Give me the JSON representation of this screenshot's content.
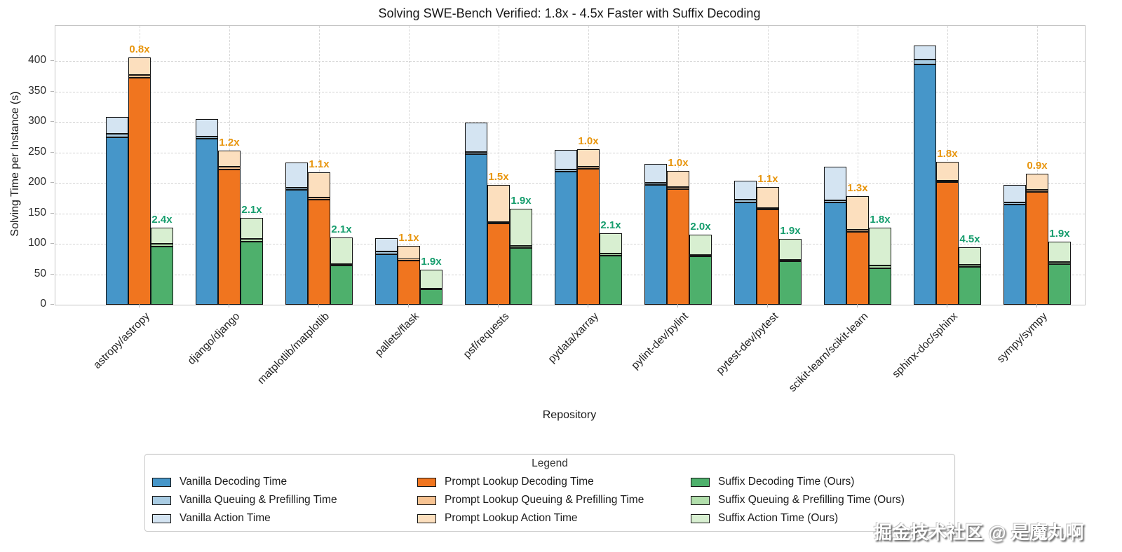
{
  "chart_data": {
    "type": "bar",
    "variant": "grouped-stacked",
    "title": "Solving SWE-Bench Verified: 1.8x - 4.5x Faster with Suffix Decoding",
    "xlabel": "Repository",
    "ylabel": "Solving Time per Instance (s)",
    "ylim": [
      0,
      457
    ],
    "yticks": [
      0,
      50,
      100,
      150,
      200,
      250,
      300,
      350,
      400
    ],
    "grid": "dashed horizontal at yticks, dashed vertical at category centers",
    "legend_position": "bottom",
    "stack_segments": [
      "Decoding Time",
      "Queuing & Prefilling Time",
      "Action Time"
    ],
    "methods": [
      {
        "key": "vanilla",
        "name": "Vanilla",
        "colors": {
          "decoding": "#4696c9",
          "queuing": "#a9cce3",
          "action": "#d4e4f2"
        }
      },
      {
        "key": "prompt_lookup",
        "name": "Prompt Lookup",
        "colors": {
          "decoding": "#f0751f",
          "queuing": "#f7c392",
          "action": "#fcdfbe"
        },
        "speedup_color": "#e8960f"
      },
      {
        "key": "suffix",
        "name": "Suffix (Ours)",
        "colors": {
          "decoding": "#4eb06c",
          "queuing": "#b2dfac",
          "action": "#d8efd1"
        },
        "speedup_color": "#169d6d"
      }
    ],
    "categories": [
      "astropy/astropy",
      "django/django",
      "matplotlib/matplotlib",
      "pallets/flask",
      "psf/requests",
      "pydata/xarray",
      "pylint-dev/pylint",
      "pytest-dev/pytest",
      "scikit-learn/scikit-learn",
      "sphinx-doc/sphinx",
      "sympy/sympy"
    ],
    "groups": [
      {
        "repo": "astropy/astropy",
        "vanilla": {
          "decoding": 275,
          "queuing": 5,
          "action": 28
        },
        "prompt_lookup": {
          "decoding": 372,
          "queuing": 5,
          "action": 29,
          "speedup": "0.8x"
        },
        "suffix": {
          "decoding": 95,
          "queuing": 5,
          "action": 27,
          "speedup": "2.4x"
        }
      },
      {
        "repo": "django/django",
        "vanilla": {
          "decoding": 272,
          "queuing": 4,
          "action": 29
        },
        "prompt_lookup": {
          "decoding": 222,
          "queuing": 4,
          "action": 27,
          "speedup": "1.2x"
        },
        "suffix": {
          "decoding": 104,
          "queuing": 4,
          "action": 35,
          "speedup": "2.1x"
        }
      },
      {
        "repo": "matplotlib/matplotlib",
        "vanilla": {
          "decoding": 188,
          "queuing": 4,
          "action": 41
        },
        "prompt_lookup": {
          "decoding": 172,
          "queuing": 4,
          "action": 41,
          "speedup": "1.1x"
        },
        "suffix": {
          "decoding": 64,
          "queuing": 3,
          "action": 43,
          "speedup": "2.1x"
        }
      },
      {
        "repo": "pallets/flask",
        "vanilla": {
          "decoding": 83,
          "queuing": 4,
          "action": 22
        },
        "prompt_lookup": {
          "decoding": 73,
          "queuing": 2,
          "action": 21,
          "speedup": "1.1x"
        },
        "suffix": {
          "decoding": 25,
          "queuing": 2,
          "action": 30,
          "speedup": "1.9x"
        }
      },
      {
        "repo": "psf/requests",
        "vanilla": {
          "decoding": 247,
          "queuing": 4,
          "action": 48
        },
        "prompt_lookup": {
          "decoding": 133,
          "queuing": 3,
          "action": 61,
          "speedup": "1.5x"
        },
        "suffix": {
          "decoding": 93,
          "queuing": 3,
          "action": 62,
          "speedup": "1.9x"
        }
      },
      {
        "repo": "pydata/xarray",
        "vanilla": {
          "decoding": 218,
          "queuing": 4,
          "action": 32
        },
        "prompt_lookup": {
          "decoding": 223,
          "queuing": 3,
          "action": 29,
          "speedup": "1.0x"
        },
        "suffix": {
          "decoding": 81,
          "queuing": 3,
          "action": 33,
          "speedup": "2.1x"
        }
      },
      {
        "repo": "pylint-dev/pylint",
        "vanilla": {
          "decoding": 196,
          "queuing": 4,
          "action": 31
        },
        "prompt_lookup": {
          "decoding": 190,
          "queuing": 3,
          "action": 27,
          "speedup": "1.0x"
        },
        "suffix": {
          "decoding": 79,
          "queuing": 3,
          "action": 33,
          "speedup": "2.0x"
        }
      },
      {
        "repo": "pytest-dev/pytest",
        "vanilla": {
          "decoding": 168,
          "queuing": 4,
          "action": 32
        },
        "prompt_lookup": {
          "decoding": 156,
          "queuing": 3,
          "action": 34,
          "speedup": "1.1x"
        },
        "suffix": {
          "decoding": 71,
          "queuing": 3,
          "action": 34,
          "speedup": "1.9x"
        }
      },
      {
        "repo": "scikit-learn/scikit-learn",
        "vanilla": {
          "decoding": 168,
          "queuing": 3,
          "action": 56
        },
        "prompt_lookup": {
          "decoding": 120,
          "queuing": 3,
          "action": 55,
          "speedup": "1.3x"
        },
        "suffix": {
          "decoding": 60,
          "queuing": 4,
          "action": 62,
          "speedup": "1.8x"
        }
      },
      {
        "repo": "sphinx-doc/sphinx",
        "vanilla": {
          "decoding": 394,
          "queuing": 8,
          "action": 23
        },
        "prompt_lookup": {
          "decoding": 201,
          "queuing": 3,
          "action": 30,
          "speedup": "1.8x"
        },
        "suffix": {
          "decoding": 62,
          "queuing": 3,
          "action": 29,
          "speedup": "4.5x"
        }
      },
      {
        "repo": "sympy/sympy",
        "vanilla": {
          "decoding": 164,
          "queuing": 4,
          "action": 28
        },
        "prompt_lookup": {
          "decoding": 185,
          "queuing": 3,
          "action": 27,
          "speedup": "0.9x"
        },
        "suffix": {
          "decoding": 67,
          "queuing": 3,
          "action": 33,
          "speedup": "1.9x"
        }
      }
    ]
  },
  "legend": {
    "title": "Legend",
    "items": [
      {
        "label": "Vanilla Decoding Time",
        "color": "#4696c9"
      },
      {
        "label": "Vanilla Queuing & Prefilling Time",
        "color": "#a9cce3"
      },
      {
        "label": "Vanilla Action Time",
        "color": "#d4e4f2"
      },
      {
        "label": "Prompt Lookup Decoding Time",
        "color": "#f0751f"
      },
      {
        "label": "Prompt Lookup Queuing & Prefilling Time",
        "color": "#f7c392"
      },
      {
        "label": "Prompt Lookup Action Time",
        "color": "#fcdfbe"
      },
      {
        "label": "Suffix Decoding Time (Ours)",
        "color": "#4eb06c"
      },
      {
        "label": "Suffix Queuing & Prefilling Time (Ours)",
        "color": "#b2dfac"
      },
      {
        "label": "Suffix Action Time (Ours)",
        "color": "#d8efd1"
      }
    ]
  },
  "watermark": {
    "text": "掘金技术社区 @ 是魔丸啊"
  }
}
